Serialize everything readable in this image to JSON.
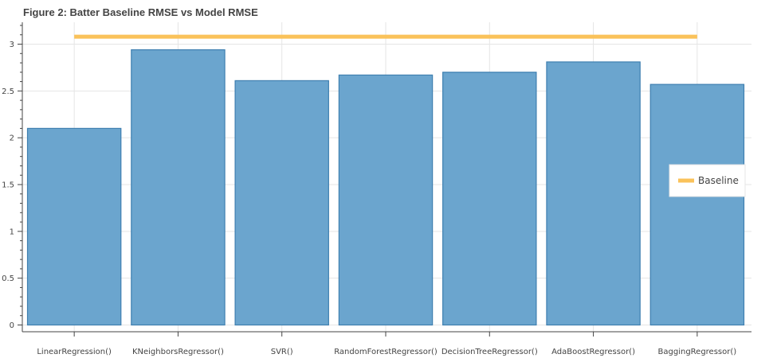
{
  "chart_data": {
    "type": "bar",
    "title": "Figure 2: Batter Baseline RMSE vs Model RMSE",
    "categories": [
      "LinearRegression()",
      "KNeighborsRegressor()",
      "SVR()",
      "RandomForestRegressor()",
      "DecisionTreeRegressor()",
      "AdaBoostRegressor()",
      "BaggingRegressor()"
    ],
    "values": [
      2.1,
      2.94,
      2.61,
      2.67,
      2.7,
      2.81,
      2.57
    ],
    "baseline": {
      "name": "Baseline",
      "value": 3.08
    },
    "yticks": [
      "0",
      "0.5",
      "1",
      "1.5",
      "2",
      "2.5",
      "3"
    ],
    "ylim": [
      -0.03,
      3.23
    ],
    "xlabel": "",
    "ylabel": "",
    "grid": true,
    "legend_position": "right",
    "colors": {
      "bar_fill": "#6ba5ce",
      "bar_stroke": "#3e7fb0",
      "baseline": "#fac25a",
      "grid": "#e5e5e5",
      "axis": "#444444"
    }
  }
}
